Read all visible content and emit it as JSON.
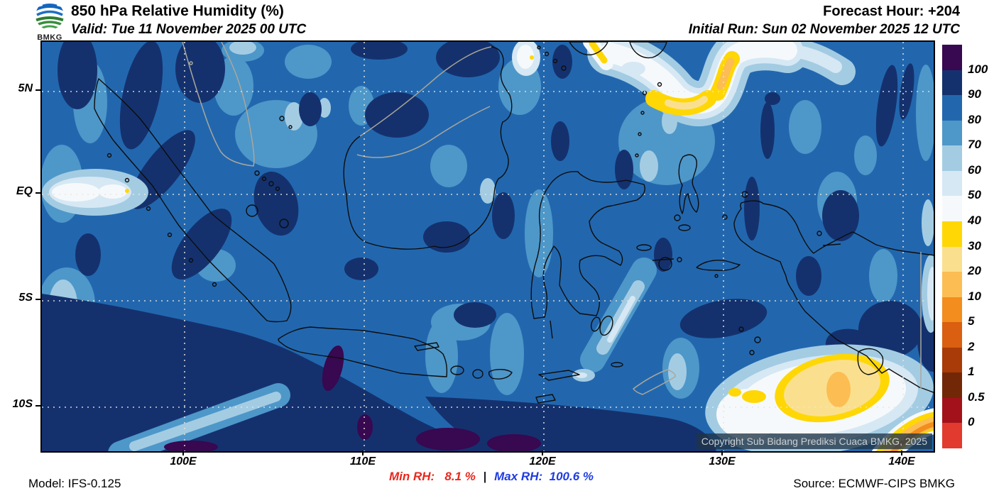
{
  "header": {
    "logo_text": "BMKG",
    "title": "850 hPa Relative Humidity (%)",
    "valid": "Valid: Tue 11 November 2025 00 UTC",
    "forecast_hour": "Forecast Hour: +204",
    "initial_run": "Initial Run: Sun 02 November 2025 12 UTC"
  },
  "map": {
    "lat_labels": [
      "5N",
      "EQ",
      "5S",
      "10S"
    ],
    "lon_labels": [
      "100E",
      "110E",
      "120E",
      "130E",
      "140E"
    ],
    "copyright": "Copyright Sub Bidang Prediksi Cuaca BMKG, 2025"
  },
  "colorbar": {
    "levels": [
      "100",
      "90",
      "80",
      "70",
      "60",
      "50",
      "40",
      "30",
      "20",
      "10",
      "5",
      "2",
      "1",
      "0.5",
      "0"
    ],
    "colors": [
      "#380850",
      "#14316e",
      "#2267ae",
      "#4e97c9",
      "#a3cce3",
      "#d6e8f4",
      "#f6f9fb",
      "#ffd704",
      "#fae08e",
      "#fcbd53",
      "#f28d1e",
      "#da5f10",
      "#a83b07",
      "#722806",
      "#a3121a",
      "#e23a2e"
    ]
  },
  "footer": {
    "model": "Model: IFS-0.125",
    "min_rh_label": "Min RH:",
    "min_rh_value": "8.1 %",
    "divider": "|",
    "max_rh_label": "Max RH:",
    "max_rh_value": "100.6 %",
    "source": "Source: ECMWF-CIPS BMKG"
  }
}
